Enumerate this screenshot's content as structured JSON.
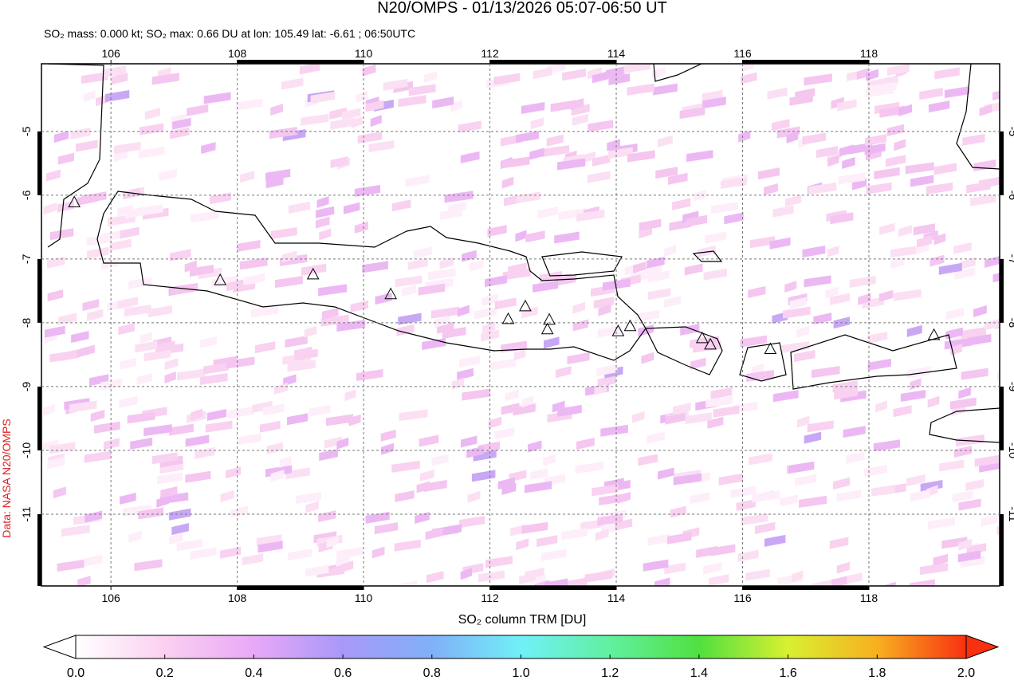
{
  "chart_data": {
    "type": "map",
    "title": "N20/OMPS - 01/13/2026 05:07-06:50 UT",
    "subtitle": "SO₂ mass: 0.000 kt; SO₂ max: 0.66 DU at lon: 105.49 lat: -6.61 ; 06:50UTC",
    "side_label": "Data: NASA N20/OMPS",
    "xlim": [
      104.9,
      120.07
    ],
    "ylim": [
      -12.125,
      -3.94
    ],
    "xticks": [
      106,
      108,
      110,
      112,
      114,
      116,
      118
    ],
    "yticks": [
      -5,
      -6,
      -7,
      -8,
      -9,
      -10,
      -11
    ],
    "grid": true,
    "markers": {
      "lon": [
        105.42,
        107.73,
        109.2,
        110.43,
        112.29,
        112.56,
        112.94,
        112.91,
        114.03,
        114.22,
        115.36,
        115.49,
        116.44,
        119.03
      ],
      "lat": [
        -6.12,
        -7.34,
        -7.25,
        -7.56,
        -7.95,
        -7.75,
        -7.96,
        -8.11,
        -8.14,
        -8.06,
        -8.25,
        -8.35,
        -8.42,
        -8.2
      ]
    },
    "colorbar": {
      "label": "SO₂ column TRM [DU]",
      "lim": [
        0,
        2
      ],
      "ticks": [
        {
          "value": 0,
          "label": "0.0"
        },
        {
          "value": 0.2,
          "label": "0.2"
        },
        {
          "value": 0.4,
          "label": "0.4"
        },
        {
          "value": 0.6,
          "label": "0.6"
        },
        {
          "value": 0.8,
          "label": "0.8"
        },
        {
          "value": 1,
          "label": "1.0"
        },
        {
          "value": 1.2,
          "label": "1.2"
        },
        {
          "value": 1.4,
          "label": "1.4"
        },
        {
          "value": 1.6,
          "label": "1.6"
        },
        {
          "value": 1.8,
          "label": "1.8"
        },
        {
          "value": 2,
          "label": "2.0"
        }
      ],
      "colors": [
        "#ffffff",
        "#fbd0f0",
        "#e8a8f8",
        "#a898f8",
        "#80b0f8",
        "#70f0f8",
        "#60f0a0",
        "#50e040",
        "#d8f030",
        "#f8b020",
        "#f83010"
      ]
    }
  }
}
